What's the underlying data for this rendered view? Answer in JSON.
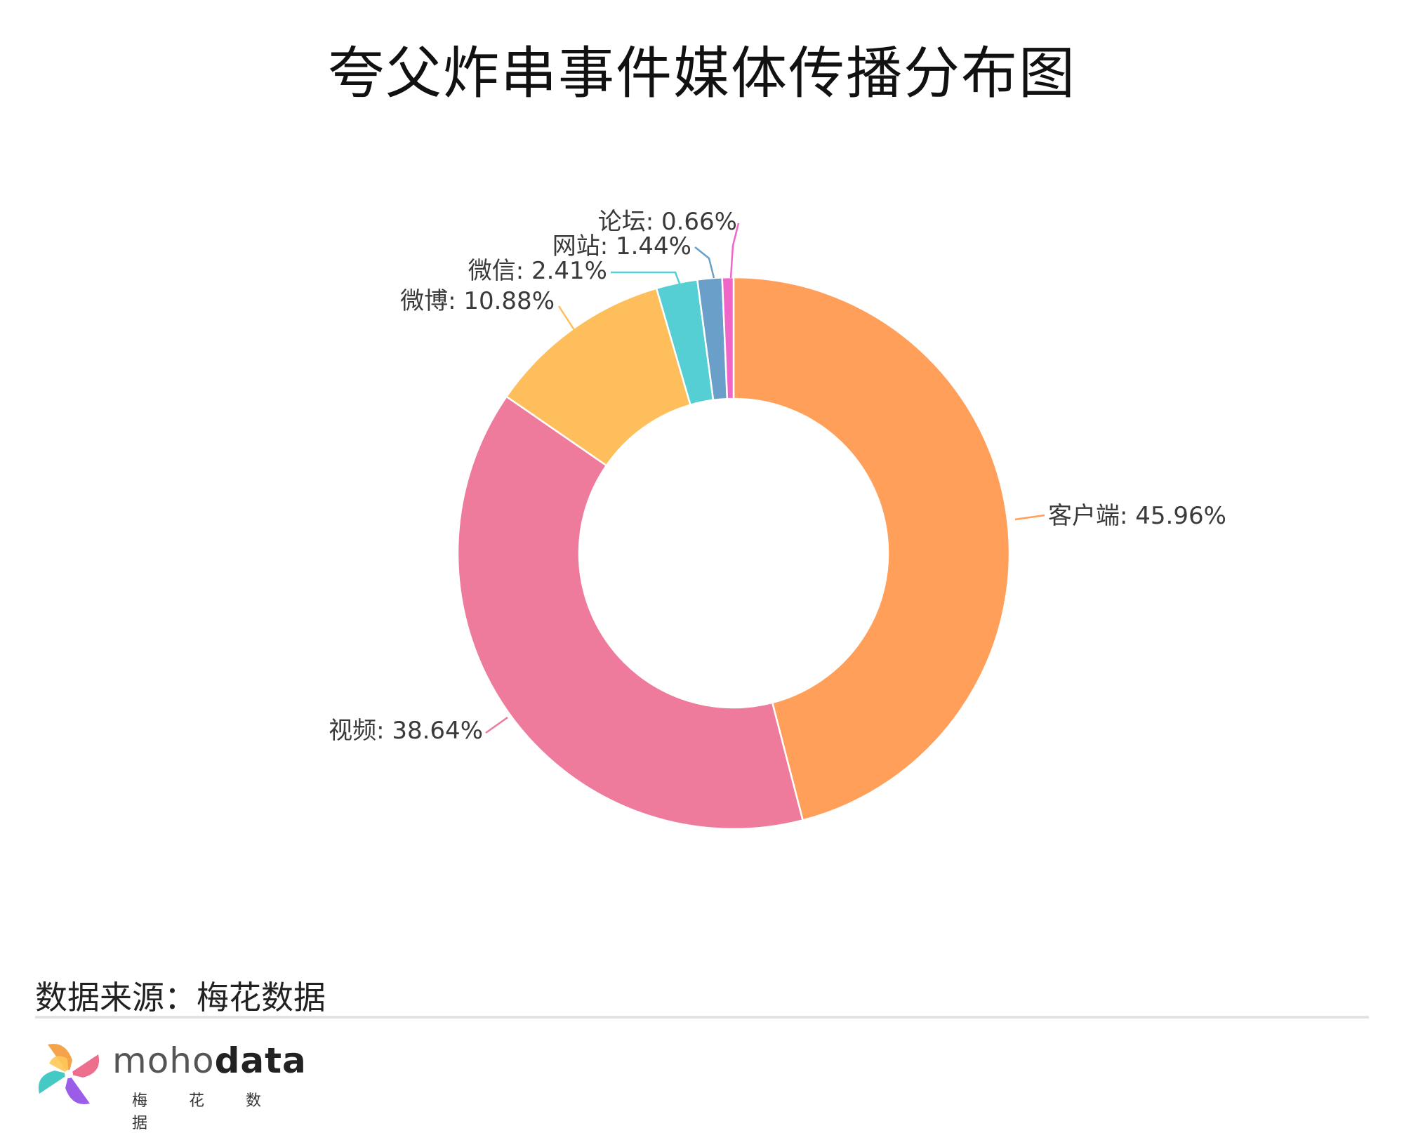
{
  "title": "夸父炸串事件媒体传播分布图",
  "source_text": "数据来源：梅花数据",
  "brand": {
    "name_light": "moho",
    "name_bold": "data",
    "subtitle": "梅 花 数 据"
  },
  "chart_data": {
    "type": "pie",
    "donut": true,
    "title": "夸父炸串事件媒体传播分布图",
    "unit": "%",
    "legend": "none",
    "slices": [
      {
        "label": "客户端",
        "value": 45.96,
        "color": "#FF9F5A"
      },
      {
        "label": "视频",
        "value": 38.64,
        "color": "#EE7B9B"
      },
      {
        "label": "微博",
        "value": 10.88,
        "color": "#FFBE5C"
      },
      {
        "label": "微信",
        "value": 2.41,
        "color": "#55CFD3"
      },
      {
        "label": "网站",
        "value": 1.44,
        "color": "#6A9FC9"
      },
      {
        "label": "论坛",
        "value": 0.66,
        "color": "#F065C8"
      }
    ]
  }
}
